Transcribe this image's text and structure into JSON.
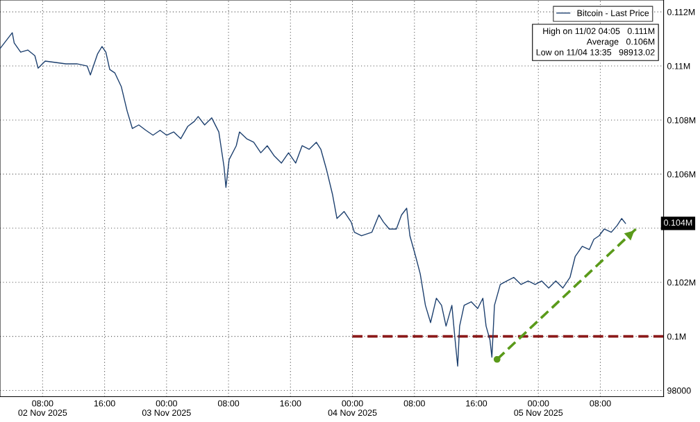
{
  "chart_data": {
    "type": "line",
    "x": [
      "2025-11-02T02:30",
      "2025-11-02T04:05",
      "2025-11-02T04:20",
      "2025-11-02T05:10",
      "2025-11-02T06:05",
      "2025-11-02T07:00",
      "2025-11-02T07:25",
      "2025-11-02T08:20",
      "2025-11-02T09:40",
      "2025-11-02T11:00",
      "2025-11-02T12:25",
      "2025-11-02T13:45",
      "2025-11-02T14:10",
      "2025-11-02T15:05",
      "2025-11-02T15:40",
      "2025-11-02T16:10",
      "2025-11-02T16:40",
      "2025-11-02T17:20",
      "2025-11-02T18:10",
      "2025-11-02T18:55",
      "2025-11-02T19:35",
      "2025-11-02T20:25",
      "2025-11-02T21:20",
      "2025-11-02T22:15",
      "2025-11-02T23:10",
      "2025-11-03T00:00",
      "2025-11-03T00:55",
      "2025-11-03T01:50",
      "2025-11-03T02:45",
      "2025-11-03T03:35",
      "2025-11-03T04:05",
      "2025-11-03T04:55",
      "2025-11-03T05:50",
      "2025-11-03T06:45",
      "2025-11-03T07:25",
      "2025-11-03T07:40",
      "2025-11-03T08:05",
      "2025-11-03T09:00",
      "2025-11-03T09:25",
      "2025-11-03T10:20",
      "2025-11-03T11:15",
      "2025-11-03T12:10",
      "2025-11-03T13:00",
      "2025-11-03T13:55",
      "2025-11-03T14:50",
      "2025-11-03T15:45",
      "2025-11-03T16:40",
      "2025-11-03T17:30",
      "2025-11-03T18:25",
      "2025-11-03T19:20",
      "2025-11-03T19:55",
      "2025-11-03T20:40",
      "2025-11-03T21:25",
      "2025-11-03T22:00",
      "2025-11-03T22:55",
      "2025-11-03T23:50",
      "2025-11-04T00:15",
      "2025-11-04T01:10",
      "2025-11-04T02:30",
      "2025-11-04T03:25",
      "2025-11-04T04:00",
      "2025-11-04T04:45",
      "2025-11-04T05:40",
      "2025-11-04T06:20",
      "2025-11-04T07:00",
      "2025-11-04T07:25",
      "2025-11-04T08:10",
      "2025-11-04T08:45",
      "2025-11-04T09:25",
      "2025-11-04T10:05",
      "2025-11-04T10:50",
      "2025-11-04T11:30",
      "2025-11-04T12:05",
      "2025-11-04T12:50",
      "2025-11-04T13:15",
      "2025-11-04T13:35",
      "2025-11-04T13:50",
      "2025-11-04T14:25",
      "2025-11-04T15:20",
      "2025-11-04T16:10",
      "2025-11-04T16:50",
      "2025-11-04T17:15",
      "2025-11-04T17:45",
      "2025-11-04T18:00",
      "2025-11-04T18:20",
      "2025-11-04T19:05",
      "2025-11-04T19:55",
      "2025-11-04T20:50",
      "2025-11-04T21:45",
      "2025-11-04T22:40",
      "2025-11-04T23:35",
      "2025-11-05T00:25",
      "2025-11-05T01:20",
      "2025-11-05T02:15",
      "2025-11-05T03:10",
      "2025-11-05T04:05",
      "2025-11-05T04:45",
      "2025-11-05T05:40",
      "2025-11-05T06:35",
      "2025-11-05T07:10",
      "2025-11-05T07:50",
      "2025-11-05T08:30",
      "2025-11-05T09:25",
      "2025-11-05T10:10",
      "2025-11-05T10:45",
      "2025-11-05T11:15"
    ],
    "series": [
      {
        "name": "Bitcoin - Last Price",
        "color": "#1c3f6e",
        "values": [
          110640,
          111230,
          110850,
          110510,
          110590,
          110380,
          109920,
          110180,
          110130,
          110080,
          110080,
          110000,
          109670,
          110440,
          110720,
          110510,
          109870,
          109740,
          109230,
          108330,
          107690,
          107820,
          107620,
          107440,
          107620,
          107440,
          107560,
          107310,
          107770,
          107950,
          108130,
          107820,
          108080,
          107560,
          106280,
          105510,
          106540,
          107050,
          107560,
          107310,
          107180,
          106790,
          107050,
          106670,
          106410,
          106790,
          106410,
          107050,
          106920,
          107180,
          106920,
          106150,
          105260,
          104360,
          104620,
          104230,
          103850,
          103720,
          103850,
          104490,
          104230,
          103970,
          103970,
          104490,
          104740,
          103720,
          102950,
          102310,
          101150,
          100510,
          101410,
          101150,
          100380,
          101150,
          99870,
          98900,
          100380,
          101150,
          101280,
          101030,
          101410,
          100380,
          99870,
          99230,
          101150,
          101920,
          102050,
          102180,
          101920,
          102050,
          101920,
          102050,
          101790,
          102050,
          101790,
          102180,
          102950,
          103330,
          103210,
          103590,
          103720,
          103970,
          103850,
          104100,
          104360,
          104180
        ]
      },
      {
        "type": "line",
        "color": "#8b1a1a",
        "line_style": "dashed",
        "x": [
          "2025-11-04T00:00",
          "2025-11-05T16:10"
        ],
        "values": [
          100000,
          100000
        ]
      },
      {
        "type": "line",
        "color": "#5a9a1a",
        "line_style": "dashed",
        "x": [
          "2025-11-04T18:40",
          "2025-11-05T12:35"
        ],
        "values": [
          99150,
          103970
        ]
      }
    ],
    "xlim": [
      "2025-11-02T02:30",
      "2025-11-05T16:10"
    ],
    "xticks": [
      {
        "value": "2025-11-02T08:00",
        "label": "08:00\n02 Nov 2025"
      },
      {
        "value": "2025-11-02T16:00",
        "label": "16:00"
      },
      {
        "value": "2025-11-03T00:00",
        "label": "00:00\n03 Nov 2025"
      },
      {
        "value": "2025-11-03T08:00",
        "label": "08:00"
      },
      {
        "value": "2025-11-03T16:00",
        "label": "16:00"
      },
      {
        "value": "2025-11-04T00:00",
        "label": "00:00\n04 Nov 2025"
      },
      {
        "value": "2025-11-04T08:00",
        "label": "08:00"
      },
      {
        "value": "2025-11-04T16:00",
        "label": "16:00"
      },
      {
        "value": "2025-11-05T00:00",
        "label": "00:00\n05 Nov 2025"
      },
      {
        "value": "2025-11-05T08:00",
        "label": "08:00"
      }
    ],
    "ylim": [
      97770,
      112440
    ],
    "yticks": [
      {
        "value": 98000,
        "label": "98000"
      },
      {
        "value": 100000,
        "label": "0.1M"
      },
      {
        "value": 102000,
        "label": "0.102M"
      },
      {
        "value": 104000,
        "label": null
      },
      {
        "value": 106000,
        "label": "0.106M"
      },
      {
        "value": 108000,
        "label": "0.108M"
      },
      {
        "value": 110000,
        "label": "0.11M"
      },
      {
        "value": 112000,
        "label": "0.112M"
      }
    ],
    "grid": true,
    "legend": "top right",
    "annotations": [
      "0.104M",
      "High on 11/02 04:05   0.111M",
      "Average   0.106M",
      "Low on 11/04 13:35   98913.02"
    ]
  }
}
